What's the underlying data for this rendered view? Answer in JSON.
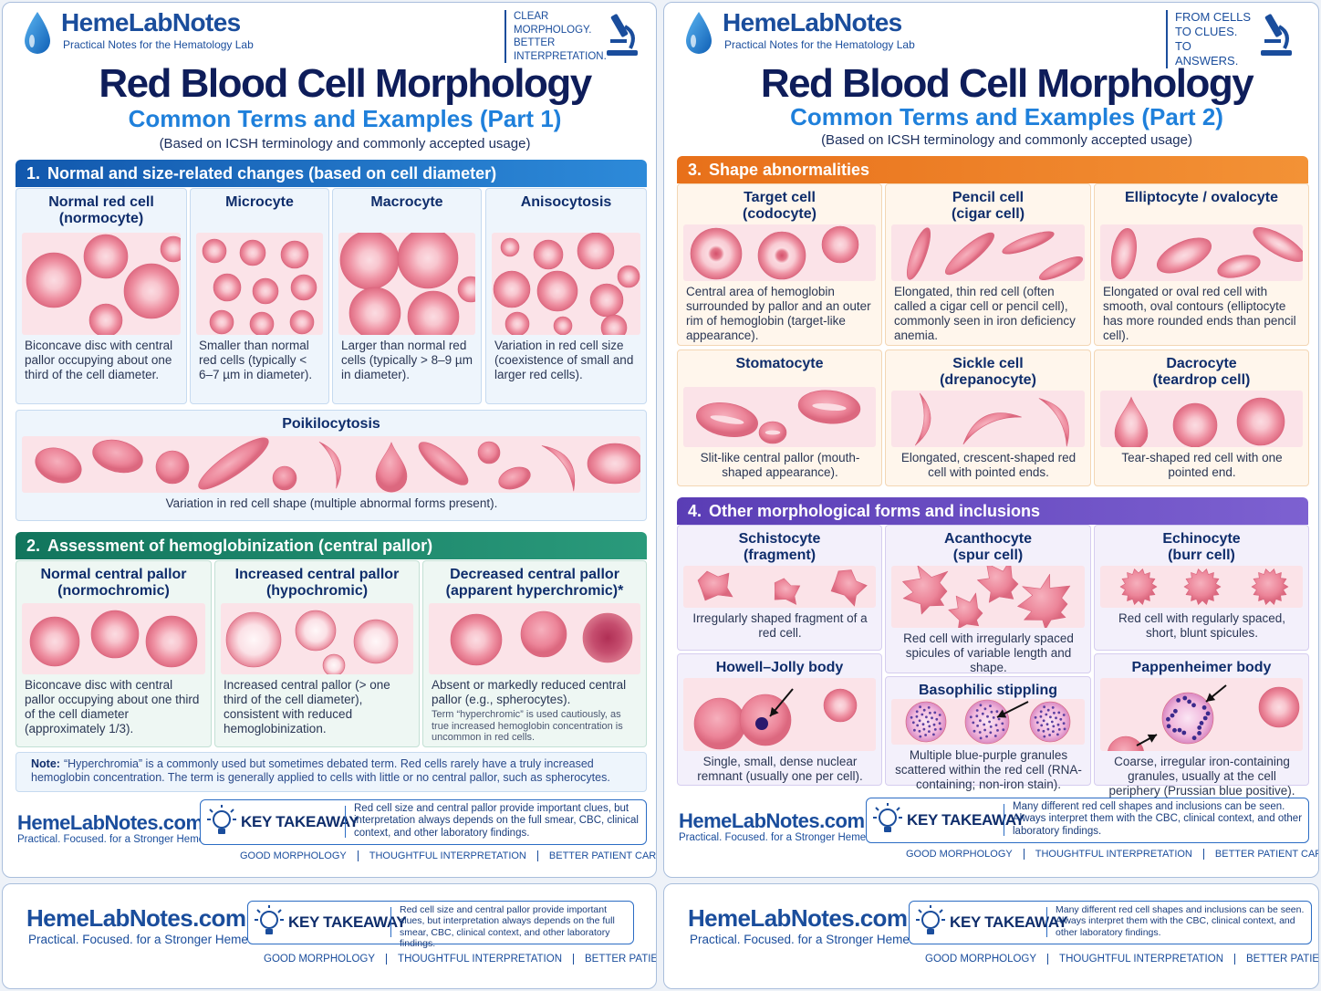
{
  "pages": [
    {
      "header": {
        "brand": "HemeLabNotes",
        "tagline": "Practical Notes for the Hematology Lab",
        "motto": "CLEAR MORPHOLOGY. BETTER INTERPRETATION."
      },
      "title": "Red Blood Cell Morphology",
      "subtitle": "Common Terms and Examples (Part 1)",
      "basis": "(Based on ICSH terminology and commonly accepted usage)",
      "sections": [
        {
          "number": "1.",
          "title": "Normal and size-related changes (based on cell diameter)",
          "items": [
            {
              "name": "Normal red cell",
              "alias": "(normocyte)",
              "description": "Biconcave disc with central pallor occupying about one third of the cell diameter."
            },
            {
              "name": "Microcyte",
              "description": "Smaller than normal red cells (typically < 6–7 µm in diameter)."
            },
            {
              "name": "Macrocyte",
              "description": "Larger than normal red cells (typically > 8–9 µm in diameter)."
            },
            {
              "name": "Anisocytosis",
              "description": "Variation in red cell size (coexistence of small and larger red cells)."
            },
            {
              "name": "Poikilocytosis",
              "description": "Variation in red cell shape (multiple abnormal forms present)."
            }
          ]
        },
        {
          "number": "2.",
          "title": "Assessment of hemoglobinization (central pallor)",
          "items": [
            {
              "name": "Normal central pallor",
              "alias": "(normochromic)",
              "description": "Biconcave disc with central pallor occupying about one third of the cell diameter (approximately 1/3)."
            },
            {
              "name": "Increased central pallor",
              "alias": "(hypochromic)",
              "description": "Increased central pallor (> one third of the cell diameter), consistent with reduced hemoglobinization."
            },
            {
              "name": "Decreased central pallor",
              "alias": "(apparent hyperchromic)*",
              "description": "Absent or markedly reduced central pallor (e.g., spherocytes).",
              "footnote": "Term “hyperchromic” is used cautiously, as true increased hemoglobin concentration is uncommon in red cells."
            }
          ]
        }
      ],
      "note": {
        "label": "Note:",
        "text": "“Hyperchromia” is a commonly used but sometimes debated term. Red cells rarely have a truly increased hemoglobin concentration. The term is generally applied to cells with little or no central pallor, such as spherocytes."
      },
      "footer": {
        "brand": "HemeLabNotes.com",
        "tagline": "Practical. Focused. for a Stronger HemeLab.",
        "key": "KEY TAKEAWAY",
        "takeaway": "Red cell size and central pallor provide important clues, but interpretation always depends on the full smear, CBC, clinical context, and other laboratory findings.",
        "links": [
          "GOOD MORPHOLOGY",
          "THOUGHTFUL INTERPRETATION",
          "BETTER PATIENT CARE"
        ]
      }
    },
    {
      "header": {
        "brand": "HemeLabNotes",
        "tagline": "Practical Notes for the Hematology Lab",
        "motto": "FROM CELLS TO CLUES. TO ANSWERS."
      },
      "title": "Red Blood Cell Morphology",
      "subtitle": "Common Terms and Examples (Part 2)",
      "basis": "(Based on ICSH terminology and commonly accepted usage)",
      "sections": [
        {
          "number": "3.",
          "title": "Shape abnormalities",
          "items": [
            {
              "name": "Target cell",
              "alias": "(codocyte)",
              "description": "Central area of hemoglobin surrounded by pallor and an outer rim of hemoglobin (target-like appearance)."
            },
            {
              "name": "Pencil cell",
              "alias": "(cigar cell)",
              "description": "Elongated, thin red cell (often called a cigar cell or pencil cell), commonly seen in iron deficiency anemia."
            },
            {
              "name": "Elliptocyte / ovalocyte",
              "description": "Elongated or oval red cell with smooth, oval contours (elliptocyte has more rounded ends than pencil cell)."
            },
            {
              "name": "Stomatocyte",
              "description": "Slit-like central pallor (mouth-shaped appearance)."
            },
            {
              "name": "Sickle cell",
              "alias": "(drepanocyte)",
              "description": "Elongated, crescent-shaped red cell with pointed ends."
            },
            {
              "name": "Dacrocyte",
              "alias": "(teardrop cell)",
              "description": "Tear-shaped red cell with one pointed end."
            }
          ]
        },
        {
          "number": "4.",
          "title": "Other morphological forms and inclusions",
          "items": [
            {
              "name": "Schistocyte",
              "alias": "(fragment)",
              "description": "Irregularly shaped fragment of a red cell."
            },
            {
              "name": "Acanthocyte",
              "alias": "(spur cell)",
              "description": "Red cell with irregularly spaced spicules of variable length and shape."
            },
            {
              "name": "Echinocyte",
              "alias": "(burr cell)",
              "description": "Red cell with regularly spaced, short, blunt spicules."
            },
            {
              "name": "Howell–Jolly body",
              "description": "Single, small, dense nuclear remnant (usually one per cell)."
            },
            {
              "name": "Basophilic stippling",
              "description": "Multiple blue-purple granules scattered within the red cell (RNA-containing; non-iron stain)."
            },
            {
              "name": "Pappenheimer body",
              "description": "Coarse, irregular iron-containing granules, usually at the cell periphery (Prussian blue positive)."
            }
          ]
        }
      ],
      "footer": {
        "brand": "HemeLabNotes.com",
        "tagline": "Practical. Focused. for a Stronger HemeLab.",
        "key": "KEY TAKEAWAY",
        "takeaway": "Many different red cell shapes and inclusions can be seen. Always interpret them with the CBC, clinical context, and other laboratory findings.",
        "links": [
          "GOOD MORPHOLOGY",
          "THOUGHTFUL INTERPRETATION",
          "BETTER PATIENT CARE"
        ]
      }
    }
  ],
  "banners": [
    {
      "brand": "HemeLabNotes.com",
      "tagline": "Practical. Focused. for a Stronger HemeLab.",
      "key": "KEY TAKEAWAY",
      "takeaway": "Red cell size and central pallor provide important clues, but interpretation always depends on the full smear, CBC, clinical context, and other laboratory findings.",
      "links": [
        "GOOD MORPHOLOGY",
        "THOUGHTFUL INTERPRETATION",
        "BETTER PATIENT CARE"
      ]
    },
    {
      "brand": "HemeLabNotes.com",
      "tagline": "Practical. Focused. for a Stronger HemeLab.",
      "key": "KEY TAKEAWAY",
      "takeaway": "Many different red cell shapes and inclusions can be seen. Always interpret them with the CBC, clinical context, and other laboratory findings.",
      "links": [
        "GOOD MORPHOLOGY",
        "THOUGHTFUL INTERPRETATION",
        "BETTER PATIENT CARE"
      ]
    }
  ]
}
